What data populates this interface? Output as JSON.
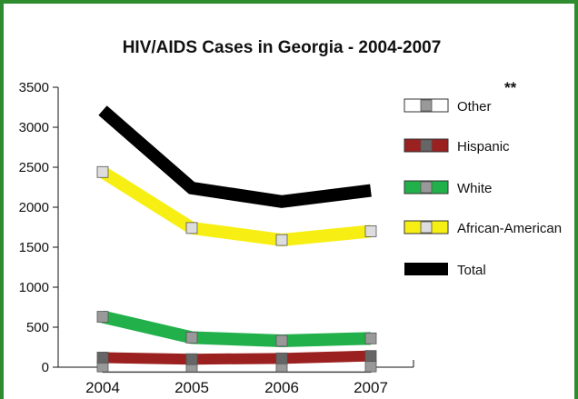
{
  "chart_data": {
    "type": "line",
    "title": "HIV/AIDS Cases in Georgia - 2004-2007",
    "xlabel": "",
    "ylabel": "",
    "categories": [
      "2004",
      "2005",
      "2006",
      "2007"
    ],
    "y_ticks": [
      "0",
      "500",
      "1000",
      "1500",
      "2000",
      "2500",
      "3000",
      "3500"
    ],
    "ylim": [
      0,
      3500
    ],
    "grid": false,
    "legend_position": "right",
    "legend_note": "**",
    "series": [
      {
        "name": "Other",
        "values": [
          10,
          10,
          10,
          10
        ],
        "color": "#ffffff",
        "marker_color": "#999999"
      },
      {
        "name": "Hispanic",
        "values": [
          120,
          100,
          110,
          140
        ],
        "color": "#9b2020",
        "marker_color": "#666666"
      },
      {
        "name": "White",
        "values": [
          630,
          370,
          330,
          360
        ],
        "color": "#22b04b",
        "marker_color": "#999999"
      },
      {
        "name": "African-American",
        "values": [
          2440,
          1740,
          1590,
          1700
        ],
        "color": "#f7ef14",
        "marker_color": "#dddddd"
      },
      {
        "name": "Total",
        "values": [
          3210,
          2240,
          2070,
          2210
        ],
        "color": "#000000",
        "marker_color": ""
      }
    ]
  }
}
